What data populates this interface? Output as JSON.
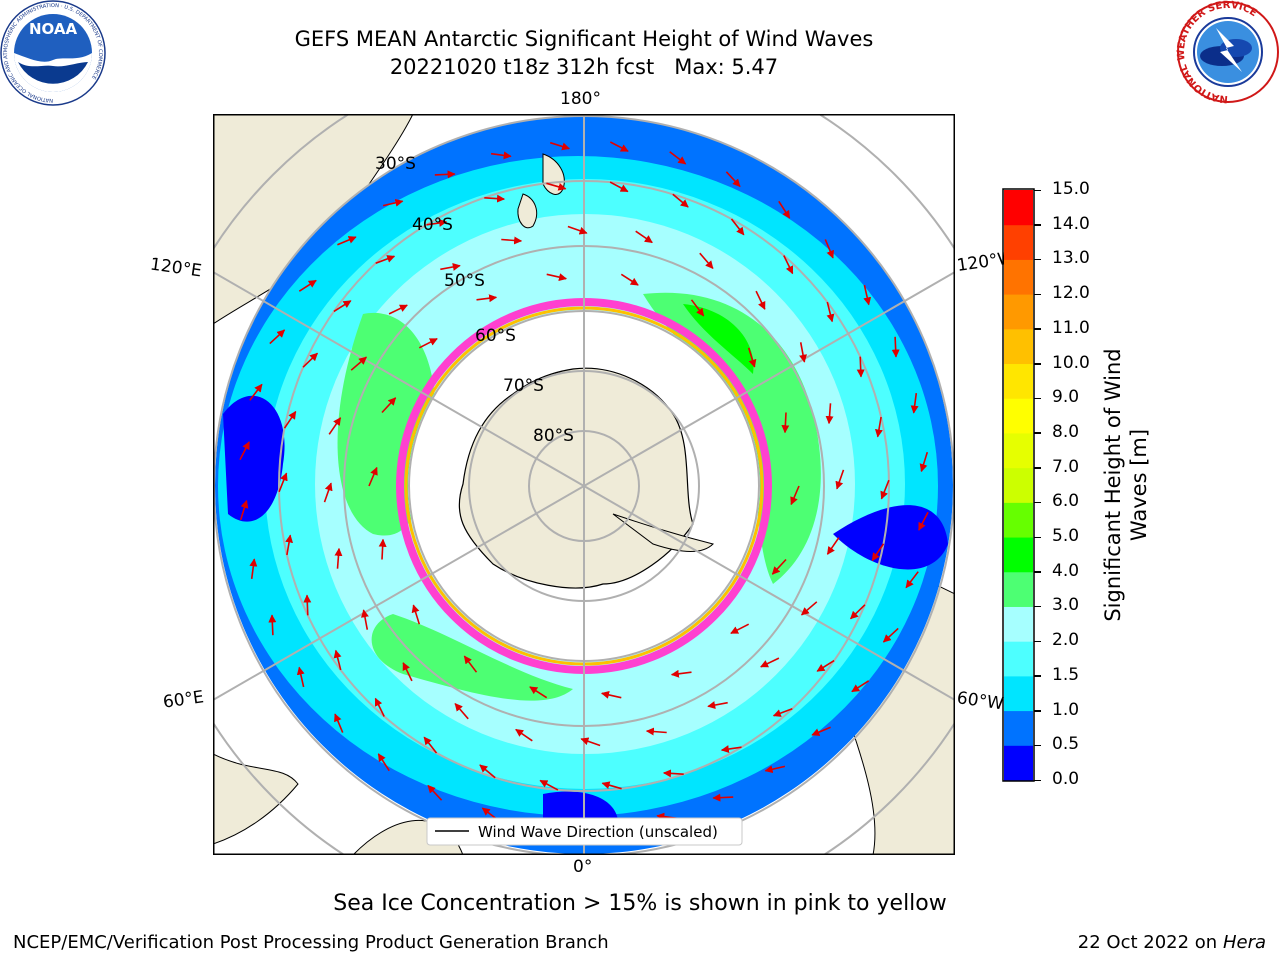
{
  "header": {
    "title_line1": "GEFS MEAN Antarctic Significant Height of Wind Waves",
    "title_line2": "20221020 t18z 312h fcst   Max: 5.47"
  },
  "logos": {
    "noaa_text": "NOAA",
    "noaa_ring_text": "NATIONAL OCEANIC AND ATMOSPHERIC ADMINISTRATION · U.S. DEPARTMENT OF COMMERCE",
    "nws_ring_text": "NATIONAL WEATHER SERVICE"
  },
  "map": {
    "lon_labels": {
      "top": "180°",
      "bottom": "0°",
      "upper_left": "120°E",
      "upper_right": "120°W",
      "lower_left": "60°E",
      "lower_right": "60°W"
    },
    "lat_labels": [
      "30°S",
      "40°S",
      "50°S",
      "60°S",
      "70°S",
      "80°S"
    ],
    "legend_label": "Wind Wave Direction (unscaled)"
  },
  "colorbar": {
    "label": "Significant Height of Wind Waves [m]",
    "label_line1": "Significant Height of Wind",
    "label_line2": "Waves [m]",
    "ticks": [
      "0.0",
      "0.5",
      "1.0",
      "1.5",
      "2.0",
      "3.0",
      "4.0",
      "5.0",
      "6.0",
      "7.0",
      "8.0",
      "9.0",
      "10.0",
      "11.0",
      "12.0",
      "13.0",
      "14.0",
      "15.0"
    ],
    "colors": [
      "#0000ff",
      "#0073ff",
      "#00e5ff",
      "#4dffff",
      "#a6ffff",
      "#4dff73",
      "#00ff00",
      "#66ff00",
      "#ccff00",
      "#e6ff00",
      "#ffff00",
      "#ffe600",
      "#ffc000",
      "#ff9900",
      "#ff7300",
      "#ff4000",
      "#ff0000"
    ]
  },
  "caption": "Sea Ice Concentration > 15% is shown in pink to yellow",
  "footer": {
    "left": "NCEP/EMC/Verification Post Processing Product Generation Branch",
    "right_date": "22 Oct 2022 on ",
    "right_host": "Hera"
  }
}
